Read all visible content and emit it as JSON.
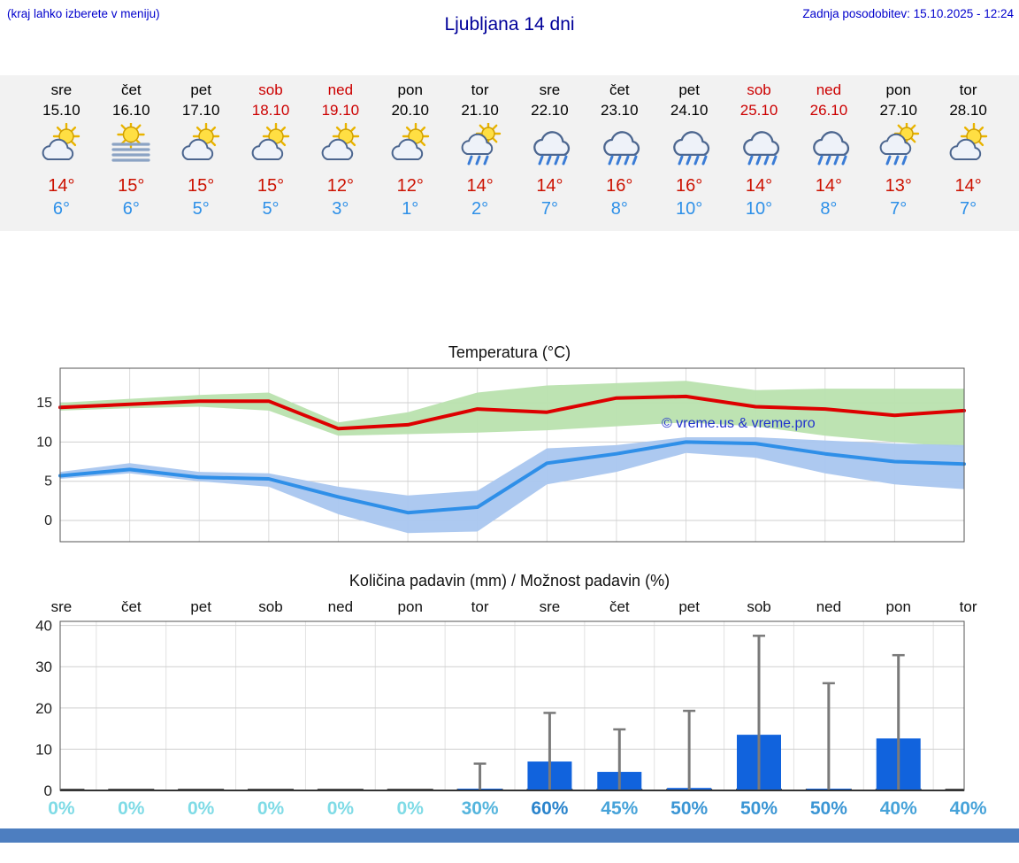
{
  "header": {
    "hint": "(kraj lahko izberete v meniju)",
    "title": "Ljubljana 14 dni",
    "last_update": "Zadnja posodobitev: 15.10.2025 - 12:24"
  },
  "forecast": {
    "days": [
      {
        "name": "sre",
        "date": "15.10",
        "weekend": false,
        "icon": "partly-cloudy",
        "high": "14°",
        "low": "6°"
      },
      {
        "name": "čet",
        "date": "16.10",
        "weekend": false,
        "icon": "fog",
        "high": "15°",
        "low": "6°"
      },
      {
        "name": "pet",
        "date": "17.10",
        "weekend": false,
        "icon": "partly-cloudy",
        "high": "15°",
        "low": "5°"
      },
      {
        "name": "sob",
        "date": "18.10",
        "weekend": true,
        "icon": "partly-cloudy",
        "high": "15°",
        "low": "5°"
      },
      {
        "name": "ned",
        "date": "19.10",
        "weekend": true,
        "icon": "partly-cloudy",
        "high": "12°",
        "low": "3°"
      },
      {
        "name": "pon",
        "date": "20.10",
        "weekend": false,
        "icon": "partly-cloudy",
        "high": "12°",
        "low": "1°"
      },
      {
        "name": "tor",
        "date": "21.10",
        "weekend": false,
        "icon": "sun-showers",
        "high": "14°",
        "low": "2°"
      },
      {
        "name": "sre",
        "date": "22.10",
        "weekend": false,
        "icon": "rain",
        "high": "14°",
        "low": "7°"
      },
      {
        "name": "čet",
        "date": "23.10",
        "weekend": false,
        "icon": "rain",
        "high": "16°",
        "low": "8°"
      },
      {
        "name": "pet",
        "date": "24.10",
        "weekend": false,
        "icon": "rain",
        "high": "16°",
        "low": "10°"
      },
      {
        "name": "sob",
        "date": "25.10",
        "weekend": true,
        "icon": "rain",
        "high": "14°",
        "low": "10°"
      },
      {
        "name": "ned",
        "date": "26.10",
        "weekend": true,
        "icon": "rain",
        "high": "14°",
        "low": "8°"
      },
      {
        "name": "pon",
        "date": "27.10",
        "weekend": false,
        "icon": "sun-showers",
        "high": "13°",
        "low": "7°"
      },
      {
        "name": "tor",
        "date": "28.10",
        "weekend": false,
        "icon": "partly-cloudy",
        "high": "14°",
        "low": "7°"
      }
    ]
  },
  "chart_data": [
    {
      "type": "line",
      "title": "Temperatura (°C)",
      "watermark": "© vreme.us & vreme.pro",
      "categories": [
        "sre",
        "čet",
        "pet",
        "sob",
        "ned",
        "pon",
        "tor",
        "sre",
        "čet",
        "pet",
        "sob",
        "ned",
        "pon",
        "tor"
      ],
      "ylim": [
        -2.7,
        19.4
      ],
      "yticks": [
        0,
        5,
        10,
        15
      ],
      "grid": true,
      "band_colors": {
        "max": "#b9e2ae",
        "min": "#a9c6ef"
      },
      "series": [
        {
          "name": "max temperature",
          "color": "#dd0000",
          "values": [
            14.4,
            14.8,
            15.2,
            15.2,
            11.7,
            12.2,
            14.2,
            13.8,
            15.6,
            15.8,
            14.5,
            14.2,
            13.4,
            14.0
          ]
        },
        {
          "name": "max range high",
          "values": [
            15.0,
            15.5,
            16.0,
            16.3,
            12.5,
            13.8,
            16.3,
            17.2,
            17.5,
            17.8,
            16.6,
            16.8,
            16.8,
            16.8
          ]
        },
        {
          "name": "max range low",
          "values": [
            14.0,
            14.3,
            14.5,
            14.0,
            10.8,
            11.0,
            11.2,
            11.5,
            12.0,
            12.5,
            12.0,
            10.8,
            10.0,
            9.3
          ]
        },
        {
          "name": "min temperature",
          "color": "#2f8fe8",
          "values": [
            5.7,
            6.5,
            5.5,
            5.3,
            3.0,
            1.0,
            1.7,
            7.3,
            8.5,
            10.0,
            9.8,
            8.5,
            7.5,
            7.2
          ]
        },
        {
          "name": "min range high",
          "values": [
            6.2,
            7.3,
            6.2,
            6.0,
            4.3,
            3.2,
            3.8,
            9.2,
            9.6,
            10.6,
            10.6,
            10.2,
            9.8,
            9.6
          ]
        },
        {
          "name": "min range low",
          "values": [
            5.3,
            6.0,
            5.0,
            4.3,
            0.8,
            -1.6,
            -1.4,
            4.6,
            6.2,
            8.6,
            8.0,
            6.0,
            4.6,
            4.0
          ]
        }
      ]
    },
    {
      "type": "bar",
      "title": "Količina padavin (mm) / Možnost padavin (%)",
      "categories": [
        "sre",
        "čet",
        "pet",
        "sob",
        "ned",
        "pon",
        "tor",
        "sre",
        "čet",
        "pet",
        "sob",
        "ned",
        "pon",
        "tor"
      ],
      "ylim": [
        0,
        41
      ],
      "yticks": [
        0,
        10,
        20,
        30,
        40
      ],
      "grid": true,
      "bar_color": "#1163dd",
      "whisker_color": "#7a7a7a",
      "values": [
        0,
        0,
        0,
        0,
        0,
        0,
        0.3,
        7,
        4.5,
        0.6,
        13.5,
        0.4,
        12.6,
        0
      ],
      "whisker_max": [
        0,
        0,
        0,
        0,
        0,
        0,
        6.5,
        18.8,
        14.8,
        19.3,
        37.5,
        26,
        32.8,
        0
      ],
      "probabilities": [
        {
          "label": "0%",
          "color": "#7fdbe6"
        },
        {
          "label": "0%",
          "color": "#7fdbe6"
        },
        {
          "label": "0%",
          "color": "#7fdbe6"
        },
        {
          "label": "0%",
          "color": "#7fdbe6"
        },
        {
          "label": "0%",
          "color": "#7fdbe6"
        },
        {
          "label": "0%",
          "color": "#7fdbe6"
        },
        {
          "label": "30%",
          "color": "#55b5dd"
        },
        {
          "label": "60%",
          "color": "#2a84cc"
        },
        {
          "label": "45%",
          "color": "#47a3d9"
        },
        {
          "label": "50%",
          "color": "#3b96d4"
        },
        {
          "label": "50%",
          "color": "#3b96d4"
        },
        {
          "label": "50%",
          "color": "#3b96d4"
        },
        {
          "label": "40%",
          "color": "#47a3d9"
        },
        {
          "label": "40%",
          "color": "#47a3d9"
        }
      ]
    }
  ]
}
